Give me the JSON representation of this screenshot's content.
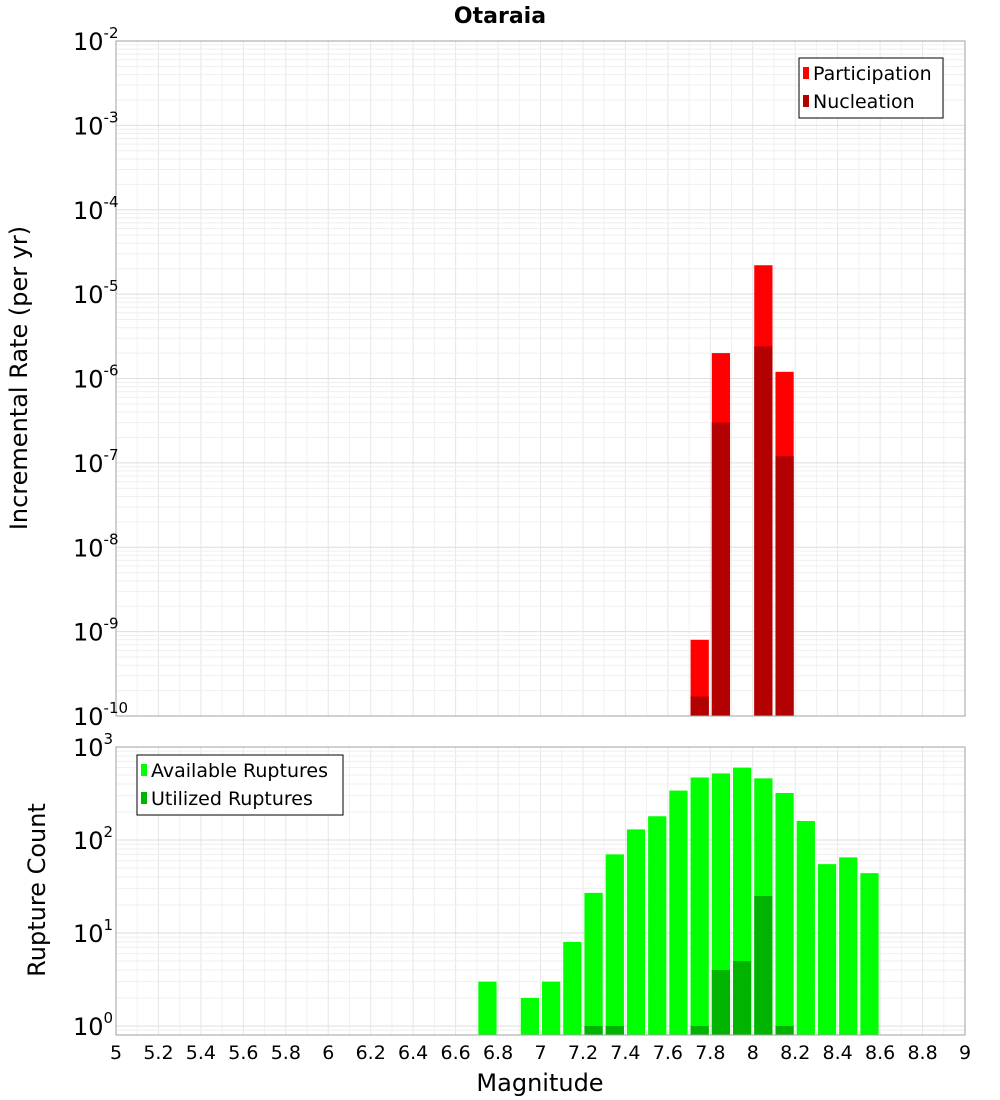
{
  "chart_data": {
    "title": "Otaraia",
    "xlabel": "Magnitude",
    "xlim": [
      5,
      9
    ],
    "x_ticks": [
      "5",
      "5.2",
      "5.4",
      "5.6",
      "5.8",
      "6",
      "6.2",
      "6.4",
      "6.6",
      "6.8",
      "7",
      "7.2",
      "7.4",
      "7.6",
      "7.8",
      "8",
      "8.2",
      "8.4",
      "8.6",
      "8.8",
      "9"
    ],
    "grid": true,
    "bin_width": 0.1,
    "panels": [
      {
        "type": "bar",
        "scale": "log",
        "ylabel": "Incremental Rate (per yr)",
        "ylim": [
          1e-10,
          0.01
        ],
        "y_ticks": [
          {
            "base": "10",
            "exp": "-10",
            "value": 1e-10
          },
          {
            "base": "10",
            "exp": "-9",
            "value": 1e-09
          },
          {
            "base": "10",
            "exp": "-8",
            "value": 1e-08
          },
          {
            "base": "10",
            "exp": "-7",
            "value": 1e-07
          },
          {
            "base": "10",
            "exp": "-6",
            "value": 1e-06
          },
          {
            "base": "10",
            "exp": "-5",
            "value": 1e-05
          },
          {
            "base": "10",
            "exp": "-4",
            "value": 0.0001
          },
          {
            "base": "10",
            "exp": "-3",
            "value": 0.001
          },
          {
            "base": "10",
            "exp": "-2",
            "value": 0.01
          }
        ],
        "legend_position": "top-right",
        "series": [
          {
            "name": "Participation",
            "color": "#ff0000",
            "points": [
              {
                "x": 7.75,
                "y": 8e-10
              },
              {
                "x": 7.85,
                "y": 2e-06
              },
              {
                "x": 8.05,
                "y": 2.2e-05
              },
              {
                "x": 8.15,
                "y": 1.2e-06
              }
            ]
          },
          {
            "name": "Nucleation",
            "color": "#b30000",
            "points": [
              {
                "x": 7.75,
                "y": 1.7e-10
              },
              {
                "x": 7.85,
                "y": 3e-07
              },
              {
                "x": 8.05,
                "y": 2.4e-06
              },
              {
                "x": 8.15,
                "y": 1.2e-07
              }
            ]
          }
        ]
      },
      {
        "type": "bar",
        "scale": "log",
        "ylabel": "Rupture Count",
        "ylim": [
          0.8,
          1000
        ],
        "y_ticks": [
          {
            "base": "10",
            "exp": "0",
            "value": 1
          },
          {
            "base": "10",
            "exp": "1",
            "value": 10
          },
          {
            "base": "10",
            "exp": "2",
            "value": 100
          },
          {
            "base": "10",
            "exp": "3",
            "value": 1000
          }
        ],
        "legend_position": "top-left",
        "series": [
          {
            "name": "Available Ruptures",
            "color": "#00ff00",
            "points": [
              {
                "x": 6.75,
                "y": 3
              },
              {
                "x": 6.95,
                "y": 2
              },
              {
                "x": 7.05,
                "y": 3
              },
              {
                "x": 7.15,
                "y": 8
              },
              {
                "x": 7.25,
                "y": 27
              },
              {
                "x": 7.35,
                "y": 70
              },
              {
                "x": 7.45,
                "y": 130
              },
              {
                "x": 7.55,
                "y": 180
              },
              {
                "x": 7.65,
                "y": 340
              },
              {
                "x": 7.75,
                "y": 470
              },
              {
                "x": 7.85,
                "y": 520
              },
              {
                "x": 7.95,
                "y": 600
              },
              {
                "x": 8.05,
                "y": 460
              },
              {
                "x": 8.15,
                "y": 320
              },
              {
                "x": 8.25,
                "y": 160
              },
              {
                "x": 8.35,
                "y": 55
              },
              {
                "x": 8.45,
                "y": 65
              },
              {
                "x": 8.55,
                "y": 44
              }
            ]
          },
          {
            "name": "Utilized Ruptures",
            "color": "#00b300",
            "points": [
              {
                "x": 7.25,
                "y": 1
              },
              {
                "x": 7.35,
                "y": 1
              },
              {
                "x": 7.75,
                "y": 1
              },
              {
                "x": 7.85,
                "y": 4
              },
              {
                "x": 7.95,
                "y": 5
              },
              {
                "x": 8.05,
                "y": 25
              },
              {
                "x": 8.15,
                "y": 1
              }
            ]
          }
        ]
      }
    ]
  }
}
